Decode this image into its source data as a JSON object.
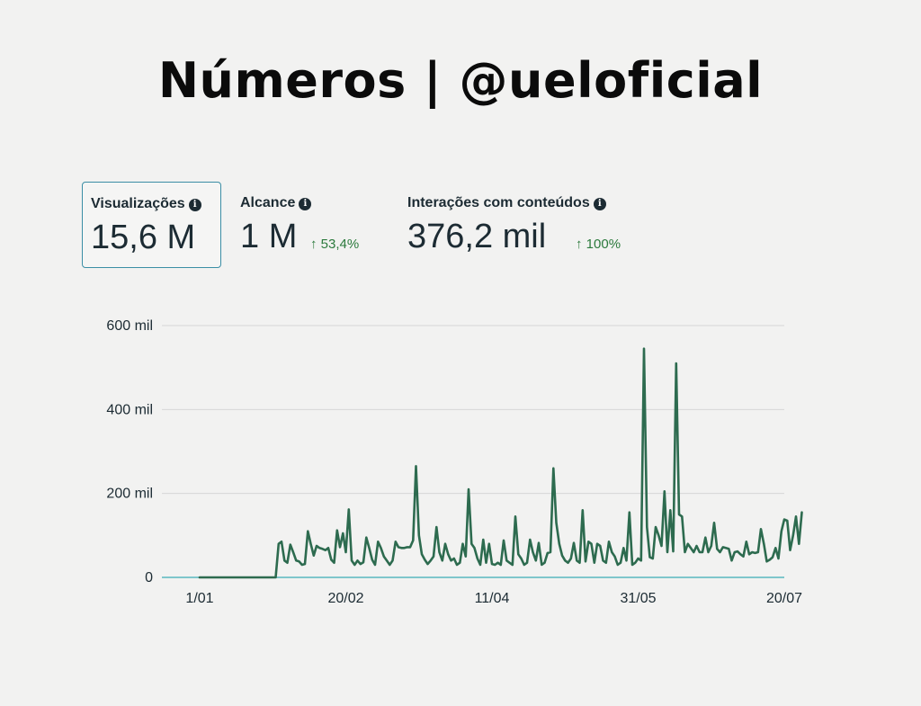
{
  "header": {
    "title": "Números | @ueloficial"
  },
  "metrics": [
    {
      "label": "Visualizações",
      "value": "15,6 M",
      "change": ""
    },
    {
      "label": "Alcance",
      "value": "1 M",
      "change": "↑ 53,4%"
    },
    {
      "label": "Interações com conteúdos",
      "value": "376,2 mil",
      "change": "↑ 100%"
    }
  ],
  "icons": {
    "info": "info-icon"
  },
  "colors": {
    "line": "#2d6b4f",
    "baseline": "#7fc6cc",
    "grid": "#d6d6d6",
    "selected_border": "#3b8ea5",
    "positive": "#2c7a3d"
  },
  "chart_data": {
    "type": "line",
    "title": "",
    "xlabel": "",
    "ylabel": "",
    "ylim": [
      0,
      600000
    ],
    "y_ticks": [
      {
        "value": 0,
        "label": "0"
      },
      {
        "value": 200000,
        "label": "200 mil"
      },
      {
        "value": 400000,
        "label": "400 mil"
      },
      {
        "value": 600000,
        "label": "600 mil"
      }
    ],
    "x_ticks": [
      {
        "index": 0,
        "label": "1/01"
      },
      {
        "index": 50,
        "label": "20/02"
      },
      {
        "index": 100,
        "label": "11/04"
      },
      {
        "index": 150,
        "label": "31/05"
      },
      {
        "index": 200,
        "label": "20/07"
      }
    ],
    "x_start": "2024-01-01",
    "grid": true,
    "legend": "none",
    "series": [
      {
        "values": [
          0,
          0,
          0,
          0,
          0,
          0,
          0,
          0,
          0,
          0,
          0,
          0,
          0,
          0,
          0,
          0,
          0,
          0,
          0,
          0,
          0,
          0,
          0,
          0,
          0,
          0,
          0,
          80000,
          85000,
          40000,
          35000,
          78000,
          60000,
          40000,
          38000,
          30000,
          32000,
          110000,
          80000,
          52000,
          75000,
          70000,
          68000,
          65000,
          70000,
          42000,
          35000,
          112000,
          72000,
          105000,
          60000,
          162000,
          40000,
          30000,
          40000,
          32000,
          36000,
          95000,
          70000,
          42000,
          30000,
          85000,
          70000,
          50000,
          40000,
          30000,
          40000,
          85000,
          72000,
          70000,
          70000,
          72000,
          72000,
          88000,
          265000,
          100000,
          55000,
          42000,
          32000,
          40000,
          50000,
          120000,
          60000,
          40000,
          80000,
          55000,
          40000,
          45000,
          30000,
          35000,
          80000,
          50000,
          210000,
          80000,
          70000,
          45000,
          30000,
          90000,
          35000,
          80000,
          32000,
          30000,
          35000,
          30000,
          88000,
          40000,
          35000,
          30000,
          145000,
          55000,
          45000,
          30000,
          35000,
          90000,
          60000,
          40000,
          82000,
          30000,
          35000,
          58000,
          60000,
          260000,
          130000,
          80000,
          52000,
          40000,
          35000,
          45000,
          82000,
          40000,
          35000,
          160000,
          38000,
          85000,
          80000,
          35000,
          80000,
          75000,
          40000,
          35000,
          85000,
          60000,
          50000,
          30000,
          35000,
          70000,
          40000,
          155000,
          30000,
          35000,
          45000,
          40000,
          545000,
          120000,
          48000,
          45000,
          120000,
          100000,
          75000,
          205000,
          60000,
          160000,
          62000,
          510000,
          150000,
          145000,
          60000,
          80000,
          70000,
          60000,
          75000,
          60000,
          60000,
          95000,
          60000,
          75000,
          130000,
          68000,
          60000,
          72000,
          70000,
          68000,
          40000,
          60000,
          62000,
          55000,
          50000,
          85000,
          55000,
          60000,
          58000,
          60000,
          115000,
          80000,
          38000,
          42000,
          48000,
          70000,
          45000,
          110000,
          138000,
          135000,
          65000,
          100000,
          145000,
          80000,
          155000
        ]
      }
    ]
  }
}
